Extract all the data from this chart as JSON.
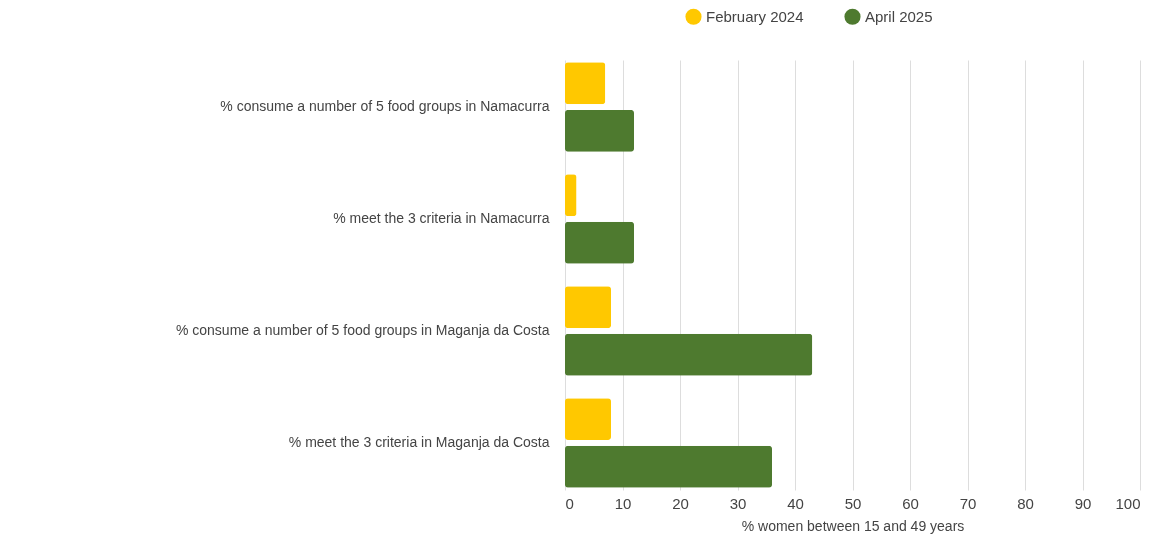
{
  "chart_data": {
    "type": "bar",
    "orientation": "horizontal",
    "xlabel": "% women between 15 and 49 years",
    "categories": [
      "% consume a number of 5 food groups in Namacurra",
      "% meet the 3 criteria in Namacurra",
      "% consume a number of 5 food groups in Maganja da Costa",
      "% meet the 3 criteria in Maganja da Costa"
    ],
    "series": [
      {
        "name": "February 2024",
        "color": "#ffc800",
        "values": [
          7,
          2,
          8,
          8
        ]
      },
      {
        "name": "April 2025",
        "color": "#4e7a2f",
        "values": [
          12,
          12,
          43,
          36
        ]
      }
    ],
    "xlim": [
      0,
      100
    ],
    "xticks": [
      0,
      10,
      20,
      30,
      40,
      50,
      60,
      70,
      80,
      90,
      100
    ],
    "grid": "x",
    "legend": "top"
  }
}
